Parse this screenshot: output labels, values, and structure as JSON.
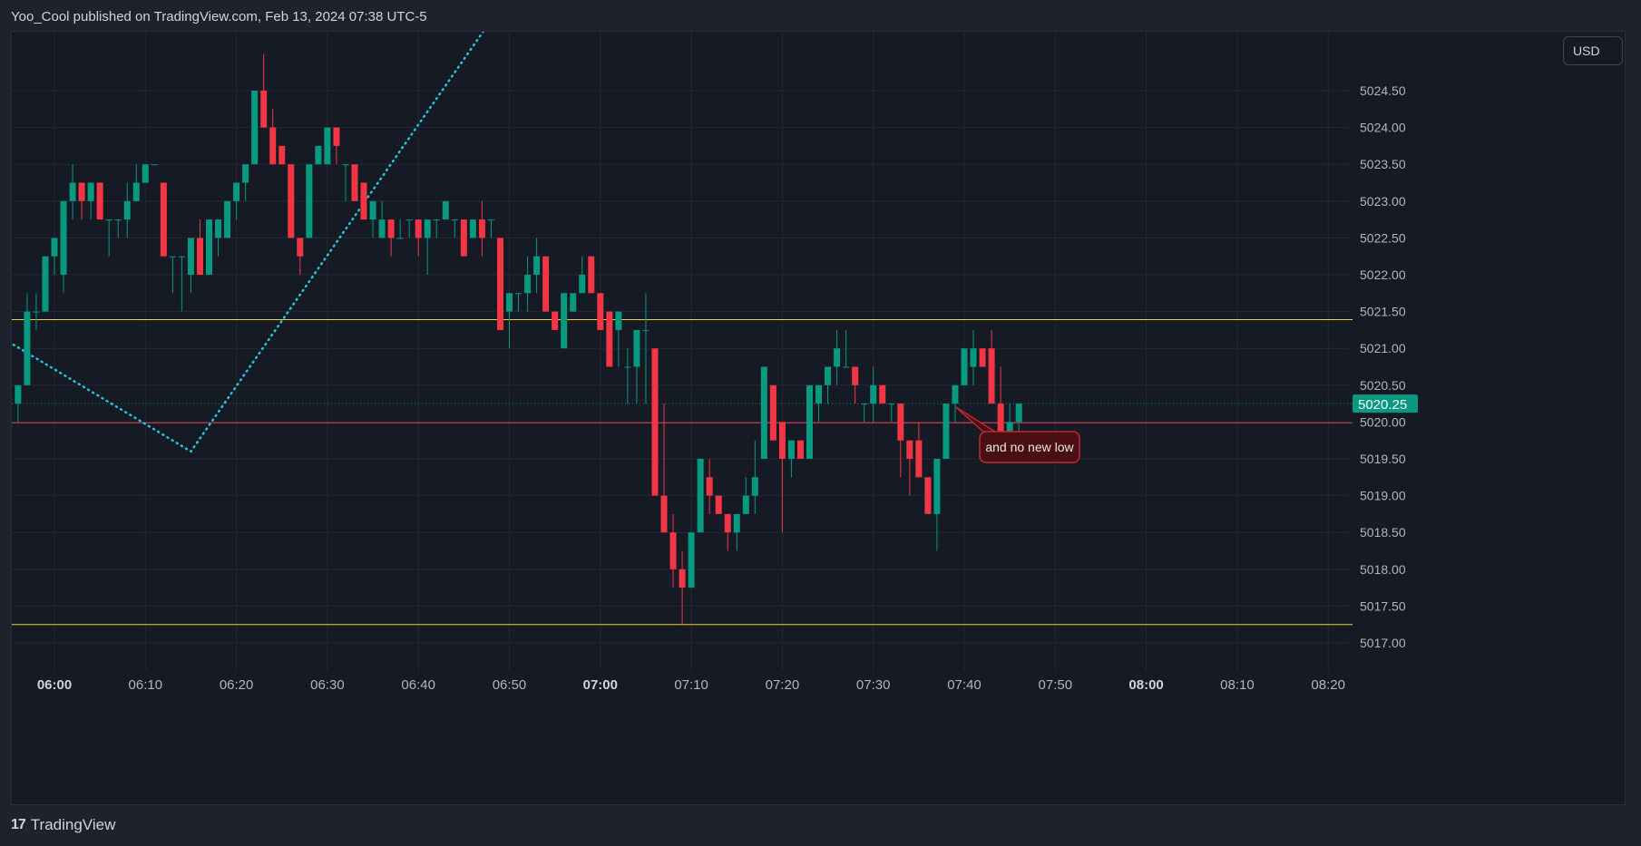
{
  "header": {
    "title": "Yoo_Cool published on TradingView.com, Feb 13, 2024 07:38 UTC-5"
  },
  "currency_label": "USD",
  "footer": {
    "logo": "17",
    "brand": "TradingView"
  },
  "colors": {
    "up": "#089981",
    "down": "#f23645",
    "grid": "#232734",
    "yellow_line": "#e8d83a",
    "red_line": "#e0424f",
    "teal_dotted": "#26c6da",
    "price_badge": "#089981",
    "callout_bg": "#4a0f12",
    "callout_border": "#c0282f"
  },
  "chart_data": {
    "type": "candlestick",
    "y_ticks": [
      "5024.50",
      "5024.00",
      "5023.50",
      "5023.00",
      "5022.50",
      "5022.00",
      "5021.50",
      "5021.00",
      "5020.50",
      "5020.00",
      "5019.50",
      "5019.00",
      "5018.50",
      "5018.00",
      "5017.50",
      "5017.00"
    ],
    "ylim": [
      5016.75,
      5025.3
    ],
    "x_ticks": [
      {
        "label": "06:00",
        "minute": 0,
        "bold": true
      },
      {
        "label": "06:10",
        "minute": 10,
        "bold": false
      },
      {
        "label": "06:20",
        "minute": 20,
        "bold": false
      },
      {
        "label": "06:30",
        "minute": 30,
        "bold": false
      },
      {
        "label": "06:40",
        "minute": 40,
        "bold": false
      },
      {
        "label": "06:50",
        "minute": 50,
        "bold": false
      },
      {
        "label": "07:00",
        "minute": 60,
        "bold": true
      },
      {
        "label": "07:10",
        "minute": 70,
        "bold": false
      },
      {
        "label": "07:20",
        "minute": 80,
        "bold": false
      },
      {
        "label": "07:30",
        "minute": 90,
        "bold": false
      },
      {
        "label": "07:40",
        "minute": 100,
        "bold": false
      },
      {
        "label": "07:50",
        "minute": 110,
        "bold": false
      },
      {
        "label": "08:00",
        "minute": 120,
        "bold": true
      },
      {
        "label": "08:10",
        "minute": 130,
        "bold": false
      },
      {
        "label": "08:20",
        "minute": 140,
        "bold": false
      }
    ],
    "candle_start_minute": -4,
    "candles": [
      [
        5020.25,
        5020.5,
        5020.0,
        5020.5
      ],
      [
        5020.5,
        5021.75,
        5020.5,
        5021.5
      ],
      [
        5021.5,
        5021.75,
        5021.25,
        5021.5
      ],
      [
        5021.5,
        5022.25,
        5021.5,
        5022.25
      ],
      [
        5022.25,
        5022.5,
        5022.0,
        5022.5
      ],
      [
        5022.0,
        5023.0,
        5021.75,
        5023.0
      ],
      [
        5023.0,
        5023.5,
        5022.75,
        5023.25
      ],
      [
        5023.25,
        5023.25,
        5022.75,
        5023.0
      ],
      [
        5023.0,
        5023.25,
        5022.75,
        5023.25
      ],
      [
        5023.25,
        5023.25,
        5022.75,
        5022.75
      ],
      [
        5022.75,
        5022.75,
        5022.25,
        5022.75
      ],
      [
        5022.75,
        5022.75,
        5022.5,
        5022.75
      ],
      [
        5022.75,
        5023.25,
        5022.5,
        5023.0
      ],
      [
        5023.0,
        5023.5,
        5023.0,
        5023.25
      ],
      [
        5023.25,
        5023.5,
        5023.25,
        5023.5
      ],
      [
        5023.5,
        5023.5,
        5023.5,
        5023.5
      ],
      [
        5023.25,
        5023.25,
        5022.25,
        5022.25
      ],
      [
        5022.25,
        5022.25,
        5021.75,
        5022.25
      ],
      [
        5022.25,
        5022.25,
        5021.5,
        5022.25
      ],
      [
        5022.0,
        5022.5,
        5021.75,
        5022.5
      ],
      [
        5022.5,
        5022.75,
        5022.0,
        5022.0
      ],
      [
        5022.0,
        5022.75,
        5022.0,
        5022.75
      ],
      [
        5022.5,
        5022.75,
        5022.25,
        5022.75
      ],
      [
        5022.5,
        5023.0,
        5022.5,
        5023.0
      ],
      [
        5023.0,
        5023.25,
        5022.75,
        5023.25
      ],
      [
        5023.25,
        5023.5,
        5023.0,
        5023.5
      ],
      [
        5023.5,
        5024.5,
        5023.5,
        5024.5
      ],
      [
        5024.5,
        5025.0,
        5024.0,
        5024.0
      ],
      [
        5024.0,
        5024.25,
        5023.5,
        5023.5
      ],
      [
        5023.75,
        5023.75,
        5023.5,
        5023.5
      ],
      [
        5023.5,
        5023.5,
        5022.5,
        5022.5
      ],
      [
        5022.5,
        5022.5,
        5022.0,
        5022.25
      ],
      [
        5022.5,
        5023.5,
        5022.5,
        5023.5
      ],
      [
        5023.5,
        5023.75,
        5023.5,
        5023.75
      ],
      [
        5023.5,
        5024.0,
        5023.5,
        5024.0
      ],
      [
        5024.0,
        5024.0,
        5023.5,
        5023.75
      ],
      [
        5023.5,
        5023.5,
        5023.0,
        5023.5
      ],
      [
        5023.5,
        5023.5,
        5023.0,
        5023.0
      ],
      [
        5023.25,
        5023.25,
        5022.75,
        5022.75
      ],
      [
        5022.75,
        5023.0,
        5022.5,
        5023.0
      ],
      [
        5022.5,
        5023.0,
        5022.5,
        5022.75
      ],
      [
        5022.75,
        5022.75,
        5022.25,
        5022.5
      ],
      [
        5022.5,
        5022.75,
        5022.5,
        5022.5
      ],
      [
        5022.75,
        5022.75,
        5022.5,
        5022.75
      ],
      [
        5022.75,
        5022.75,
        5022.25,
        5022.5
      ],
      [
        5022.5,
        5022.75,
        5022.0,
        5022.75
      ],
      [
        5022.75,
        5022.75,
        5022.5,
        5022.75
      ],
      [
        5022.75,
        5023.0,
        5022.75,
        5023.0
      ],
      [
        5022.75,
        5022.75,
        5022.5,
        5022.75
      ],
      [
        5022.75,
        5022.75,
        5022.25,
        5022.25
      ],
      [
        5022.5,
        5022.75,
        5022.5,
        5022.75
      ],
      [
        5022.75,
        5023.0,
        5022.25,
        5022.5
      ],
      [
        5022.75,
        5022.75,
        5022.5,
        5022.75
      ],
      [
        5022.5,
        5022.5,
        5021.25,
        5021.25
      ],
      [
        5021.5,
        5021.75,
        5021.0,
        5021.75
      ],
      [
        5021.75,
        5021.75,
        5021.5,
        5021.75
      ],
      [
        5021.75,
        5022.25,
        5021.5,
        5022.0
      ],
      [
        5022.0,
        5022.5,
        5021.75,
        5022.25
      ],
      [
        5022.25,
        5022.25,
        5021.5,
        5021.5
      ],
      [
        5021.5,
        5021.5,
        5021.25,
        5021.25
      ],
      [
        5021.0,
        5021.75,
        5021.0,
        5021.75
      ],
      [
        5021.5,
        5021.75,
        5021.5,
        5021.75
      ],
      [
        5021.75,
        5022.25,
        5021.75,
        5022.0
      ],
      [
        5022.25,
        5022.25,
        5021.75,
        5021.75
      ],
      [
        5021.75,
        5021.75,
        5021.25,
        5021.25
      ],
      [
        5021.5,
        5021.5,
        5020.75,
        5020.75
      ],
      [
        5021.25,
        5021.5,
        5020.75,
        5021.5
      ],
      [
        5020.75,
        5021.0,
        5020.25,
        5020.75
      ],
      [
        5020.75,
        5021.25,
        5020.25,
        5021.25
      ],
      [
        5021.25,
        5021.75,
        5020.25,
        5021.25
      ],
      [
        5021.0,
        5021.0,
        5019.0,
        5019.0
      ],
      [
        5019.0,
        5020.25,
        5018.5,
        5018.5
      ],
      [
        5018.5,
        5018.75,
        5017.75,
        5018.0
      ],
      [
        5018.0,
        5018.25,
        5017.25,
        5017.75
      ],
      [
        5017.75,
        5018.5,
        5017.75,
        5018.5
      ],
      [
        5018.5,
        5019.5,
        5018.5,
        5019.5
      ],
      [
        5019.25,
        5019.5,
        5018.75,
        5019.0
      ],
      [
        5019.0,
        5019.0,
        5018.75,
        5018.75
      ],
      [
        5018.75,
        5018.75,
        5018.25,
        5018.5
      ],
      [
        5018.5,
        5018.75,
        5018.25,
        5018.75
      ],
      [
        5018.75,
        5019.25,
        5018.75,
        5019.0
      ],
      [
        5019.0,
        5019.75,
        5018.75,
        5019.25
      ],
      [
        5019.5,
        5020.75,
        5019.5,
        5020.75
      ],
      [
        5020.5,
        5020.5,
        5019.75,
        5019.75
      ],
      [
        5020.0,
        5020.0,
        5018.5,
        5019.5
      ],
      [
        5019.5,
        5019.75,
        5019.25,
        5019.75
      ],
      [
        5019.75,
        5019.75,
        5019.5,
        5019.5
      ],
      [
        5019.5,
        5020.5,
        5019.5,
        5020.5
      ],
      [
        5020.25,
        5020.5,
        5020.0,
        5020.5
      ],
      [
        5020.5,
        5020.75,
        5020.25,
        5020.75
      ],
      [
        5020.75,
        5021.25,
        5020.5,
        5021.0
      ],
      [
        5020.75,
        5021.25,
        5020.75,
        5020.75
      ],
      [
        5020.75,
        5020.75,
        5020.25,
        5020.5
      ],
      [
        5020.25,
        5020.25,
        5020.0,
        5020.25
      ],
      [
        5020.25,
        5020.75,
        5020.0,
        5020.5
      ],
      [
        5020.5,
        5020.5,
        5020.25,
        5020.25
      ],
      [
        5020.25,
        5020.25,
        5020.0,
        5020.25
      ],
      [
        5020.25,
        5020.25,
        5019.25,
        5019.75
      ],
      [
        5019.75,
        5019.75,
        5019.0,
        5019.5
      ],
      [
        5019.75,
        5020.0,
        5019.25,
        5019.25
      ],
      [
        5019.25,
        5019.25,
        5018.75,
        5018.75
      ],
      [
        5018.75,
        5019.5,
        5018.25,
        5019.5
      ],
      [
        5019.5,
        5020.25,
        5019.5,
        5020.25
      ],
      [
        5020.25,
        5020.5,
        5020.0,
        5020.5
      ],
      [
        5020.5,
        5021.0,
        5020.5,
        5021.0
      ],
      [
        5020.75,
        5021.25,
        5020.5,
        5021.0
      ],
      [
        5021.0,
        5021.0,
        5020.75,
        5020.75
      ],
      [
        5021.0,
        5021.25,
        5020.25,
        5020.25
      ],
      [
        5020.25,
        5020.75,
        5019.75,
        5019.75
      ],
      [
        5019.75,
        5020.25,
        5019.75,
        5020.0
      ],
      [
        5020.0,
        5020.25,
        5019.75,
        5020.25
      ]
    ],
    "horizontal_lines": [
      {
        "price": 5021.39,
        "color": "yellow_line"
      },
      {
        "price": 5017.25,
        "color": "yellow_line"
      },
      {
        "price": 5019.99,
        "color": "red_line"
      }
    ],
    "current_price": {
      "price": 5020.25,
      "label": "5020.25"
    },
    "dotted_trend": [
      {
        "minute": -4.5,
        "price": 5021.05
      },
      {
        "minute": 15,
        "price": 5019.6
      },
      {
        "minute": 48.8,
        "price": 5025.6
      }
    ],
    "annotation": {
      "text": "and no new low",
      "anchor_minute": 98.7,
      "anchor_price": 5020.2
    }
  }
}
